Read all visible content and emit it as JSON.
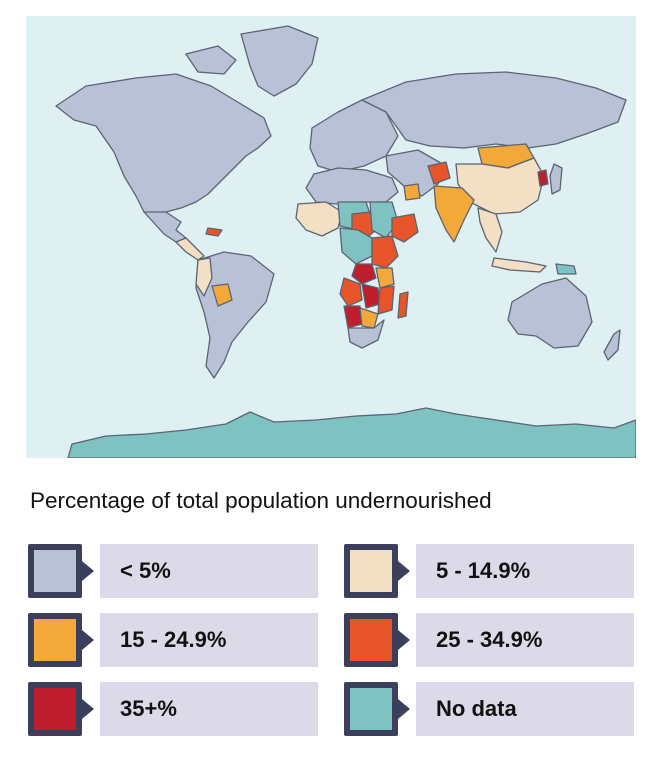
{
  "map": {
    "caption": "Percentage of total population undernourished",
    "colors": {
      "ocean": "#dff0f3",
      "under_5": "#b8c1d6",
      "5_to_14_9": "#f3dfc4",
      "15_to_24_9": "#f3a83a",
      "25_to_34_9": "#e8552a",
      "35_plus": "#be1e2d",
      "no_data": "#7fc2c2",
      "border": "#5a6473"
    }
  },
  "legend": {
    "items": [
      {
        "label": "< 5%",
        "color": "#b8c1d6"
      },
      {
        "label": "5 - 14.9%",
        "color": "#f3dfc4"
      },
      {
        "label": "15 - 24.9%",
        "color": "#f3a83a"
      },
      {
        "label": "25 - 34.9%",
        "color": "#e8552a"
      },
      {
        "label": "35+%",
        "color": "#be1e2d"
      },
      {
        "label": "No data",
        "color": "#7fc2c2"
      }
    ]
  }
}
